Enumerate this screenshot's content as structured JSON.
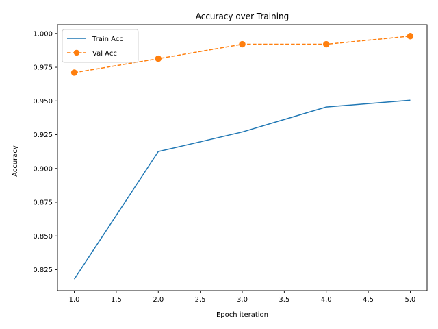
{
  "chart_data": {
    "type": "line",
    "title": "Accuracy over Training",
    "xlabel": "Epoch iteration",
    "ylabel": "Accuracy",
    "xlim": [
      0.8,
      5.2
    ],
    "ylim": [
      0.8095,
      1.0065
    ],
    "x_ticks": [
      "1.0",
      "1.5",
      "2.0",
      "2.5",
      "3.0",
      "3.5",
      "4.0",
      "4.5",
      "5.0"
    ],
    "y_ticks": [
      "0.825",
      "0.850",
      "0.875",
      "0.900",
      "0.925",
      "0.950",
      "0.975",
      "1.000"
    ],
    "grid": false,
    "legend_position": "top-left",
    "x": [
      1,
      2,
      3,
      4,
      5
    ],
    "series": [
      {
        "name": "Train Acc",
        "values": [
          0.818,
          0.9125,
          0.927,
          0.9455,
          0.9505
        ],
        "color": "#1f77b4",
        "style": "solid",
        "marker": "none"
      },
      {
        "name": "Val Acc",
        "values": [
          0.971,
          0.9813,
          0.992,
          0.992,
          0.998
        ],
        "color": "#ff7f0e",
        "style": "dashed",
        "marker": "circle"
      }
    ]
  }
}
